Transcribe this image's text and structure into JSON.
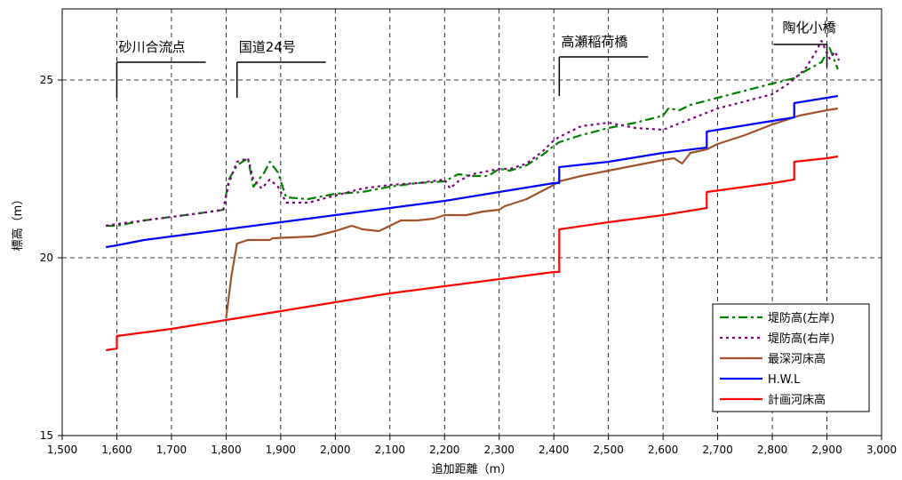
{
  "chart_data": {
    "type": "line",
    "xlabel": "追加距離（m）",
    "ylabel": "標高（m）",
    "xlim": [
      1500,
      3000
    ],
    "ylim": [
      15,
      27
    ],
    "xticks": [
      "1,500",
      "1,600",
      "1,700",
      "1,800",
      "1,900",
      "2,000",
      "2,100",
      "2,200",
      "2,300",
      "2,400",
      "2,500",
      "2,600",
      "2,700",
      "2,800",
      "2,900",
      "3,000"
    ],
    "yticks": [
      "15",
      "20",
      "25"
    ],
    "grid": true,
    "legend_position": "bottom-right",
    "annotations": [
      {
        "text": "砂川合流点",
        "x": 1600
      },
      {
        "text": "国道24号",
        "x": 1820
      },
      {
        "text": "高瀬稲荷橋",
        "x": 2410
      },
      {
        "text": "陶化小橋",
        "x": 2900
      }
    ],
    "series": [
      {
        "name": "堤防高(左岸)",
        "color": "#008000",
        "style": "dashdot",
        "points": [
          [
            1580,
            20.9
          ],
          [
            1600,
            20.9
          ],
          [
            1650,
            21.05
          ],
          [
            1700,
            21.15
          ],
          [
            1750,
            21.25
          ],
          [
            1795,
            21.35
          ],
          [
            1805,
            22.2
          ],
          [
            1820,
            22.6
          ],
          [
            1840,
            22.8
          ],
          [
            1850,
            22.0
          ],
          [
            1870,
            22.4
          ],
          [
            1880,
            22.7
          ],
          [
            1895,
            22.4
          ],
          [
            1910,
            21.7
          ],
          [
            1950,
            21.65
          ],
          [
            2000,
            21.8
          ],
          [
            2050,
            21.85
          ],
          [
            2100,
            22.0
          ],
          [
            2150,
            22.1
          ],
          [
            2200,
            22.15
          ],
          [
            2225,
            22.35
          ],
          [
            2250,
            22.3
          ],
          [
            2280,
            22.3
          ],
          [
            2300,
            22.5
          ],
          [
            2320,
            22.45
          ],
          [
            2350,
            22.6
          ],
          [
            2380,
            22.9
          ],
          [
            2400,
            23.15
          ],
          [
            2410,
            23.25
          ],
          [
            2450,
            23.45
          ],
          [
            2500,
            23.65
          ],
          [
            2550,
            23.8
          ],
          [
            2600,
            24.0
          ],
          [
            2610,
            24.2
          ],
          [
            2630,
            24.15
          ],
          [
            2650,
            24.3
          ],
          [
            2700,
            24.5
          ],
          [
            2750,
            24.7
          ],
          [
            2800,
            24.9
          ],
          [
            2840,
            25.05
          ],
          [
            2860,
            25.25
          ],
          [
            2890,
            25.5
          ],
          [
            2905,
            25.9
          ],
          [
            2920,
            25.3
          ]
        ]
      },
      {
        "name": "堤防高(右岸)",
        "color": "#800080",
        "style": "dotted",
        "points": [
          [
            1580,
            20.9
          ],
          [
            1600,
            20.95
          ],
          [
            1650,
            21.05
          ],
          [
            1700,
            21.15
          ],
          [
            1750,
            21.25
          ],
          [
            1795,
            21.35
          ],
          [
            1805,
            22.1
          ],
          [
            1820,
            22.7
          ],
          [
            1840,
            22.8
          ],
          [
            1850,
            22.2
          ],
          [
            1865,
            21.95
          ],
          [
            1880,
            22.2
          ],
          [
            1895,
            22.0
          ],
          [
            1910,
            21.55
          ],
          [
            1950,
            21.55
          ],
          [
            2000,
            21.75
          ],
          [
            2050,
            21.95
          ],
          [
            2100,
            22.05
          ],
          [
            2150,
            22.1
          ],
          [
            2200,
            22.2
          ],
          [
            2210,
            21.95
          ],
          [
            2225,
            22.15
          ],
          [
            2250,
            22.35
          ],
          [
            2300,
            22.5
          ],
          [
            2320,
            22.5
          ],
          [
            2350,
            22.65
          ],
          [
            2380,
            23.0
          ],
          [
            2400,
            23.3
          ],
          [
            2410,
            23.4
          ],
          [
            2450,
            23.7
          ],
          [
            2500,
            23.8
          ],
          [
            2550,
            23.65
          ],
          [
            2600,
            23.6
          ],
          [
            2650,
            23.9
          ],
          [
            2700,
            24.2
          ],
          [
            2750,
            24.4
          ],
          [
            2800,
            24.6
          ],
          [
            2830,
            24.9
          ],
          [
            2860,
            25.3
          ],
          [
            2880,
            25.8
          ],
          [
            2890,
            26.1
          ],
          [
            2905,
            25.6
          ],
          [
            2915,
            25.8
          ],
          [
            2922,
            25.55
          ]
        ]
      },
      {
        "name": "最深河床高",
        "color": "#A0522D",
        "style": "solid",
        "points": [
          [
            1800,
            18.3
          ],
          [
            1810,
            19.5
          ],
          [
            1820,
            20.4
          ],
          [
            1840,
            20.5
          ],
          [
            1880,
            20.5
          ],
          [
            1885,
            20.55
          ],
          [
            1960,
            20.6
          ],
          [
            2000,
            20.75
          ],
          [
            2030,
            20.9
          ],
          [
            2050,
            20.8
          ],
          [
            2080,
            20.75
          ],
          [
            2100,
            20.9
          ],
          [
            2120,
            21.05
          ],
          [
            2150,
            21.05
          ],
          [
            2180,
            21.1
          ],
          [
            2200,
            21.2
          ],
          [
            2240,
            21.2
          ],
          [
            2270,
            21.3
          ],
          [
            2300,
            21.35
          ],
          [
            2310,
            21.45
          ],
          [
            2350,
            21.65
          ],
          [
            2400,
            22.05
          ],
          [
            2410,
            22.15
          ],
          [
            2450,
            22.3
          ],
          [
            2500,
            22.45
          ],
          [
            2550,
            22.6
          ],
          [
            2600,
            22.75
          ],
          [
            2620,
            22.8
          ],
          [
            2635,
            22.65
          ],
          [
            2650,
            22.95
          ],
          [
            2680,
            23.05
          ],
          [
            2700,
            23.2
          ],
          [
            2750,
            23.45
          ],
          [
            2800,
            23.75
          ],
          [
            2850,
            24.0
          ],
          [
            2900,
            24.15
          ],
          [
            2920,
            24.2
          ]
        ]
      },
      {
        "name": "H.W.L",
        "color": "#0000FF",
        "style": "solid",
        "points": [
          [
            1580,
            20.3
          ],
          [
            1600,
            20.35
          ],
          [
            1650,
            20.5
          ],
          [
            1700,
            20.6
          ],
          [
            1800,
            20.8
          ],
          [
            1850,
            20.9
          ],
          [
            1900,
            21.0
          ],
          [
            2000,
            21.2
          ],
          [
            2100,
            21.4
          ],
          [
            2200,
            21.6
          ],
          [
            2300,
            21.85
          ],
          [
            2400,
            22.1
          ],
          [
            2410,
            22.1
          ],
          [
            2410,
            22.55
          ],
          [
            2500,
            22.7
          ],
          [
            2600,
            22.95
          ],
          [
            2680,
            23.1
          ],
          [
            2680,
            23.55
          ],
          [
            2700,
            23.6
          ],
          [
            2800,
            23.85
          ],
          [
            2840,
            23.95
          ],
          [
            2840,
            24.35
          ],
          [
            2900,
            24.5
          ],
          [
            2920,
            24.55
          ]
        ]
      },
      {
        "name": "計画河床高",
        "color": "#FF0000",
        "style": "solid",
        "points": [
          [
            1580,
            17.4
          ],
          [
            1600,
            17.45
          ],
          [
            1600,
            17.8
          ],
          [
            1650,
            17.9
          ],
          [
            1700,
            18.0
          ],
          [
            1800,
            18.25
          ],
          [
            1900,
            18.5
          ],
          [
            2000,
            18.75
          ],
          [
            2100,
            19.0
          ],
          [
            2200,
            19.2
          ],
          [
            2300,
            19.4
          ],
          [
            2400,
            19.6
          ],
          [
            2410,
            19.6
          ],
          [
            2410,
            20.8
          ],
          [
            2500,
            21.0
          ],
          [
            2600,
            21.2
          ],
          [
            2680,
            21.4
          ],
          [
            2680,
            21.85
          ],
          [
            2800,
            22.1
          ],
          [
            2840,
            22.2
          ],
          [
            2840,
            22.7
          ],
          [
            2900,
            22.8
          ],
          [
            2920,
            22.85
          ]
        ]
      }
    ]
  }
}
